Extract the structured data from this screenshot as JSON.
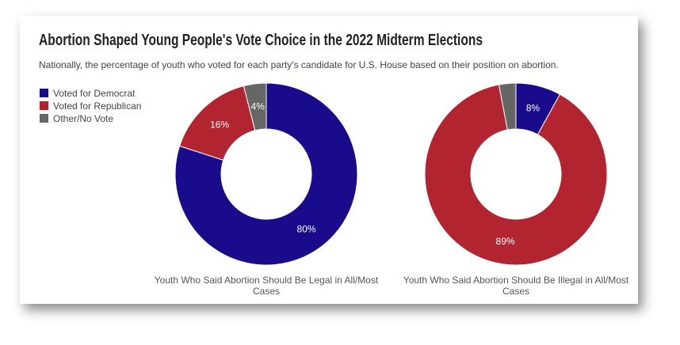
{
  "title": "Abortion Shaped Young People's Vote Choice in the 2022 Midterm Elections",
  "subtitle": "Nationally, the percentage of youth who voted for each party's candidate for U.S. House based on their position on abortion.",
  "chart_data": [
    {
      "type": "donut",
      "caption": "Youth Who Said Abortion Should Be Legal in All/Most Cases",
      "categories": [
        "Voted for Democrat",
        "Voted for Republican",
        "Other/No Vote"
      ],
      "colors": [
        "#1a0a8c",
        "#b22530",
        "#666666"
      ],
      "values": [
        80,
        16,
        4
      ],
      "value_labels": [
        "80%",
        "16%",
        "4%"
      ]
    },
    {
      "type": "donut",
      "caption": "Youth Who Said Abortion Should Be Illegal in All/Most Cases",
      "categories": [
        "Voted for Democrat",
        "Voted for Republican",
        "Other/No Vote"
      ],
      "colors": [
        "#1a0a8c",
        "#b22530",
        "#666666"
      ],
      "values": [
        8,
        89,
        3
      ],
      "value_labels": [
        "8%",
        "89%",
        null
      ]
    }
  ]
}
